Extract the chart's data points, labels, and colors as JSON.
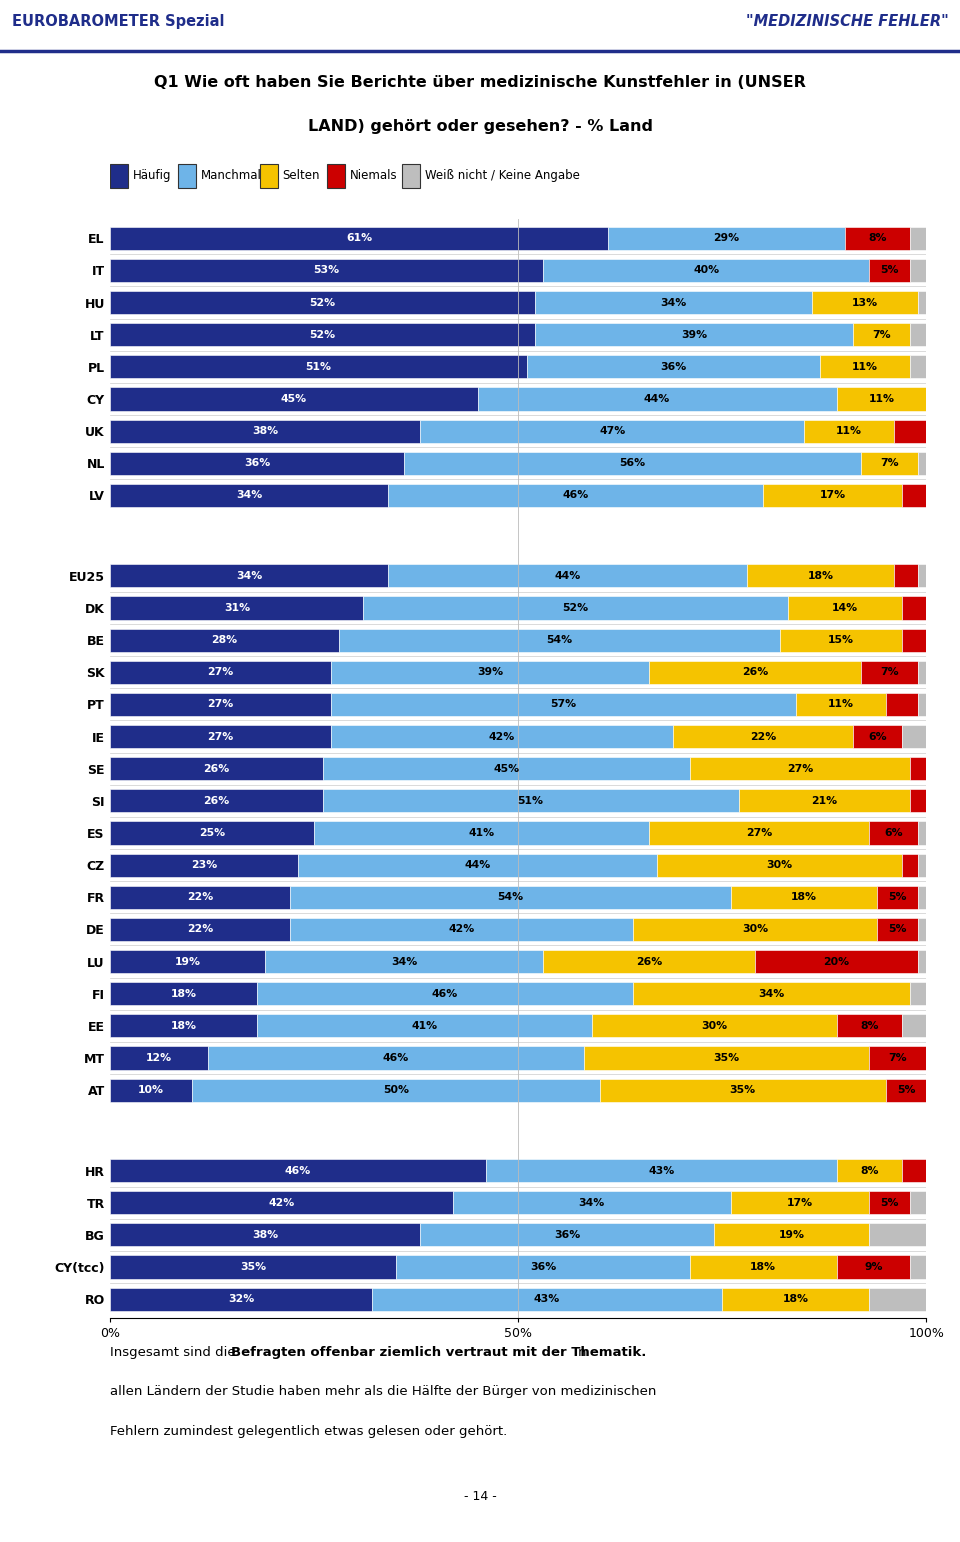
{
  "header_left": "EUROBAROMETER Spezial",
  "header_right": "\"MEDIZINISCHE FEHLER\"",
  "title_line1": "Q1 Wie oft haben Sie Berichte über medizinische Kunstfehler in (UNSER",
  "title_line2": "LAND) gehört oder gesehen? - % Land",
  "legend_labels": [
    "Häufig",
    "Manchmal",
    "Selten",
    "Niemals",
    "Weiß nicht / Keine Angabe"
  ],
  "legend_colors": [
    "#1F2D8A",
    "#6EB4E8",
    "#F5C300",
    "#CC0000",
    "#BEBEBE"
  ],
  "countries": [
    "EL",
    "IT",
    "HU",
    "LT",
    "PL",
    "CY",
    "UK",
    "NL",
    "LV",
    "EU25",
    "DK",
    "BE",
    "SK",
    "PT",
    "IE",
    "SE",
    "SI",
    "ES",
    "CZ",
    "FR",
    "DE",
    "LU",
    "FI",
    "EE",
    "MT",
    "AT",
    "HR",
    "TR",
    "BG",
    "CY(tcc)",
    "RO"
  ],
  "data": [
    [
      61,
      29,
      0,
      8,
      2
    ],
    [
      53,
      40,
      0,
      5,
      2
    ],
    [
      52,
      34,
      13,
      0,
      1
    ],
    [
      52,
      39,
      7,
      0,
      2
    ],
    [
      51,
      36,
      11,
      0,
      2
    ],
    [
      45,
      44,
      11,
      0,
      0
    ],
    [
      38,
      47,
      11,
      4,
      0
    ],
    [
      36,
      56,
      7,
      0,
      1
    ],
    [
      34,
      46,
      17,
      3,
      0
    ],
    [
      34,
      44,
      18,
      3,
      1
    ],
    [
      31,
      52,
      14,
      3,
      0
    ],
    [
      28,
      54,
      15,
      3,
      0
    ],
    [
      27,
      39,
      26,
      7,
      1
    ],
    [
      27,
      57,
      11,
      4,
      1
    ],
    [
      27,
      42,
      22,
      6,
      3
    ],
    [
      26,
      45,
      27,
      2,
      0
    ],
    [
      26,
      51,
      21,
      2,
      0
    ],
    [
      25,
      41,
      27,
      6,
      1
    ],
    [
      23,
      44,
      30,
      2,
      1
    ],
    [
      22,
      54,
      18,
      5,
      1
    ],
    [
      22,
      42,
      30,
      5,
      1
    ],
    [
      19,
      34,
      26,
      20,
      1
    ],
    [
      18,
      46,
      34,
      0,
      2
    ],
    [
      18,
      41,
      30,
      8,
      3
    ],
    [
      12,
      46,
      35,
      7,
      0
    ],
    [
      10,
      50,
      35,
      5,
      0
    ],
    [
      46,
      43,
      8,
      3,
      0
    ],
    [
      42,
      34,
      17,
      5,
      2
    ],
    [
      38,
      36,
      19,
      0,
      7
    ],
    [
      35,
      36,
      18,
      9,
      2
    ],
    [
      32,
      43,
      18,
      0,
      7
    ]
  ],
  "bar_labels": [
    [
      "61%",
      "29%",
      "",
      "8%",
      ""
    ],
    [
      "53%",
      "40%",
      "",
      "5%",
      ""
    ],
    [
      "52%",
      "34%",
      "13%",
      "",
      ""
    ],
    [
      "52%",
      "39%",
      "7%",
      "",
      ""
    ],
    [
      "51%",
      "36%",
      "11%",
      "",
      ""
    ],
    [
      "45%",
      "44%",
      "11%",
      "",
      ""
    ],
    [
      "38%",
      "47%",
      "11%",
      "",
      ""
    ],
    [
      "36%",
      "56%",
      "7%",
      "",
      ""
    ],
    [
      "34%",
      "46%",
      "17%",
      "",
      ""
    ],
    [
      "34%",
      "44%",
      "18%",
      "",
      ""
    ],
    [
      "31%",
      "52%",
      "14%",
      "",
      ""
    ],
    [
      "28%",
      "54%",
      "15%",
      "",
      ""
    ],
    [
      "27%",
      "39%",
      "26%",
      "7%",
      ""
    ],
    [
      "27%",
      "57%",
      "11%",
      "",
      ""
    ],
    [
      "27%",
      "42%",
      "22%",
      "6%",
      ""
    ],
    [
      "26%",
      "45%",
      "27%",
      "",
      ""
    ],
    [
      "26%",
      "51%",
      "21%",
      "",
      ""
    ],
    [
      "25%",
      "41%",
      "27%",
      "6%",
      ""
    ],
    [
      "23%",
      "44%",
      "30%",
      "",
      ""
    ],
    [
      "22%",
      "54%",
      "18%",
      "5%",
      ""
    ],
    [
      "22%",
      "42%",
      "30%",
      "5%",
      ""
    ],
    [
      "19%",
      "34%",
      "26%",
      "20%",
      ""
    ],
    [
      "18%",
      "46%",
      "34%",
      "",
      ""
    ],
    [
      "18%",
      "41%",
      "30%",
      "8%",
      ""
    ],
    [
      "12%",
      "46%",
      "35%",
      "7%",
      ""
    ],
    [
      "10%",
      "50%",
      "35%",
      "5%",
      ""
    ],
    [
      "46%",
      "43%",
      "8%",
      "",
      ""
    ],
    [
      "42%",
      "34%",
      "17%",
      "5%",
      ""
    ],
    [
      "38%",
      "36%",
      "19%",
      "",
      ""
    ],
    [
      "35%",
      "36%",
      "18%",
      "9%",
      ""
    ],
    [
      "32%",
      "43%",
      "18%",
      "",
      ""
    ]
  ],
  "sep_before_indices": [
    9,
    26
  ],
  "colors": [
    "#1F2D8A",
    "#6EB4E8",
    "#F5C300",
    "#CC0000",
    "#BEBEBE"
  ],
  "page_number": "- 14 -"
}
